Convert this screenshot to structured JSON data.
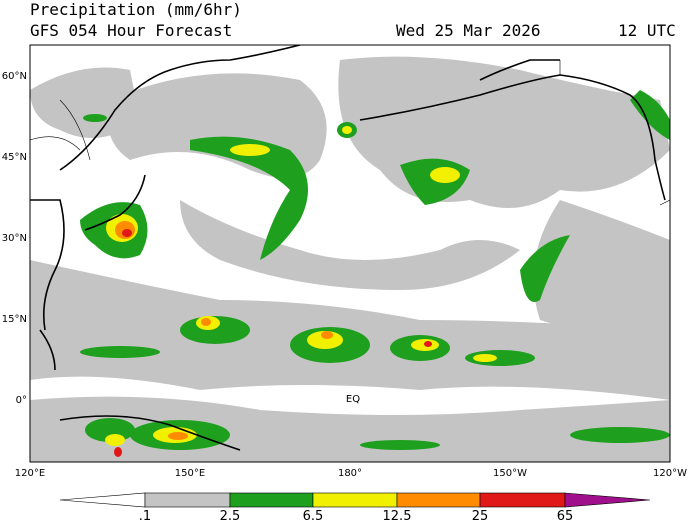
{
  "header": {
    "title": "Precipitation (mm/6hr)",
    "subtitle": "GFS 054 Hour Forecast",
    "date": "Wed 25 Mar 2026",
    "time": "12 UTC"
  },
  "map": {
    "lat_labels": [
      "60°N",
      "45°N",
      "30°N",
      "15°N",
      "0°"
    ],
    "lon_labels": [
      "120°E",
      "150°E",
      "180°",
      "150°W",
      "120°W"
    ],
    "equator_label": "EQ"
  },
  "colorbar": {
    "labels": [
      ".1",
      "2.5",
      "6.5",
      "12.5",
      "25",
      "65"
    ]
  }
}
